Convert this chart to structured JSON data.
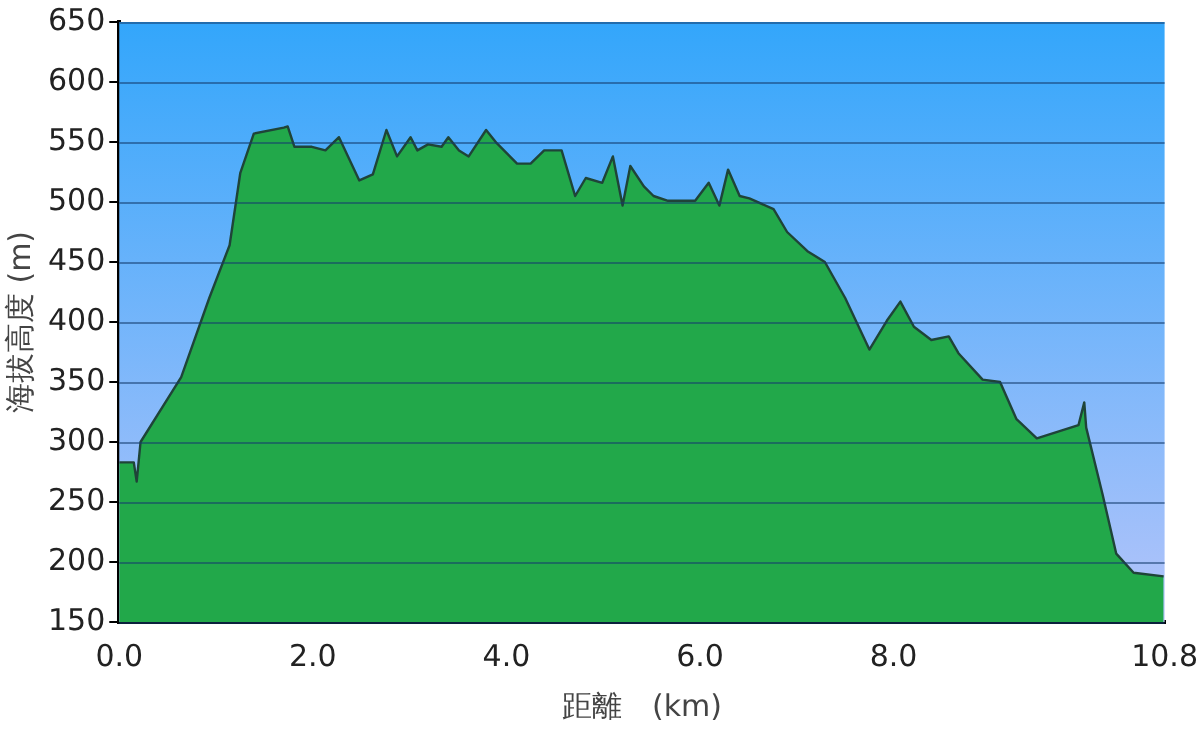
{
  "chart_data": {
    "type": "area",
    "xlabel": "距離　(km)",
    "ylabel": "海拔高度 (m)",
    "x": [
      0.0,
      0.15,
      0.18,
      0.22,
      0.64,
      0.93,
      1.14,
      1.25,
      1.39,
      1.7,
      1.74,
      1.81,
      1.99,
      2.13,
      2.27,
      2.48,
      2.62,
      2.76,
      2.87,
      3.01,
      3.08,
      3.19,
      3.33,
      3.4,
      3.51,
      3.61,
      3.79,
      3.9,
      4.11,
      4.25,
      4.39,
      4.57,
      4.71,
      4.82,
      4.99,
      5.1,
      5.2,
      5.28,
      5.42,
      5.52,
      5.67,
      5.95,
      6.09,
      6.2,
      6.29,
      6.41,
      6.51,
      6.76,
      6.9,
      7.11,
      7.29,
      7.5,
      7.75,
      7.93,
      8.07,
      8.21,
      8.39,
      8.57,
      8.67,
      8.92,
      9.1,
      9.27,
      9.48,
      9.91,
      9.97,
      9.99,
      10.16,
      10.3,
      10.48,
      10.79
    ],
    "series": [
      {
        "color": "#22a84a",
        "values": [
          283,
          283,
          267,
          300,
          354,
          420,
          464,
          524,
          557,
          562,
          563,
          546,
          546,
          543,
          554,
          518,
          523,
          560,
          538,
          554,
          543,
          548,
          546,
          554,
          543,
          538,
          560,
          549,
          532,
          532,
          543,
          543,
          505,
          520,
          516,
          538,
          497,
          530,
          513,
          505,
          501,
          501,
          516,
          497,
          527,
          505,
          503,
          494,
          475,
          459,
          450,
          420,
          377,
          401,
          417,
          396,
          385,
          388,
          374,
          352,
          350,
          319,
          303,
          314,
          333,
          312,
          256,
          207,
          191,
          188
        ]
      }
    ],
    "xlim": [
      0,
      10.8
    ],
    "xticks": [
      {
        "value": 0,
        "label": "0.0"
      },
      {
        "value": 2,
        "label": "2.0"
      },
      {
        "value": 4,
        "label": "4.0"
      },
      {
        "value": 6,
        "label": "6.0"
      },
      {
        "value": 8,
        "label": "8.0"
      },
      {
        "value": 10.8,
        "label": "10.8"
      }
    ],
    "ylim": [
      150,
      650
    ],
    "yticks": [
      150,
      200,
      250,
      300,
      350,
      400,
      450,
      500,
      550,
      600,
      650
    ],
    "grid": "y",
    "legend": false,
    "marker": "none",
    "line_style": "solid"
  }
}
